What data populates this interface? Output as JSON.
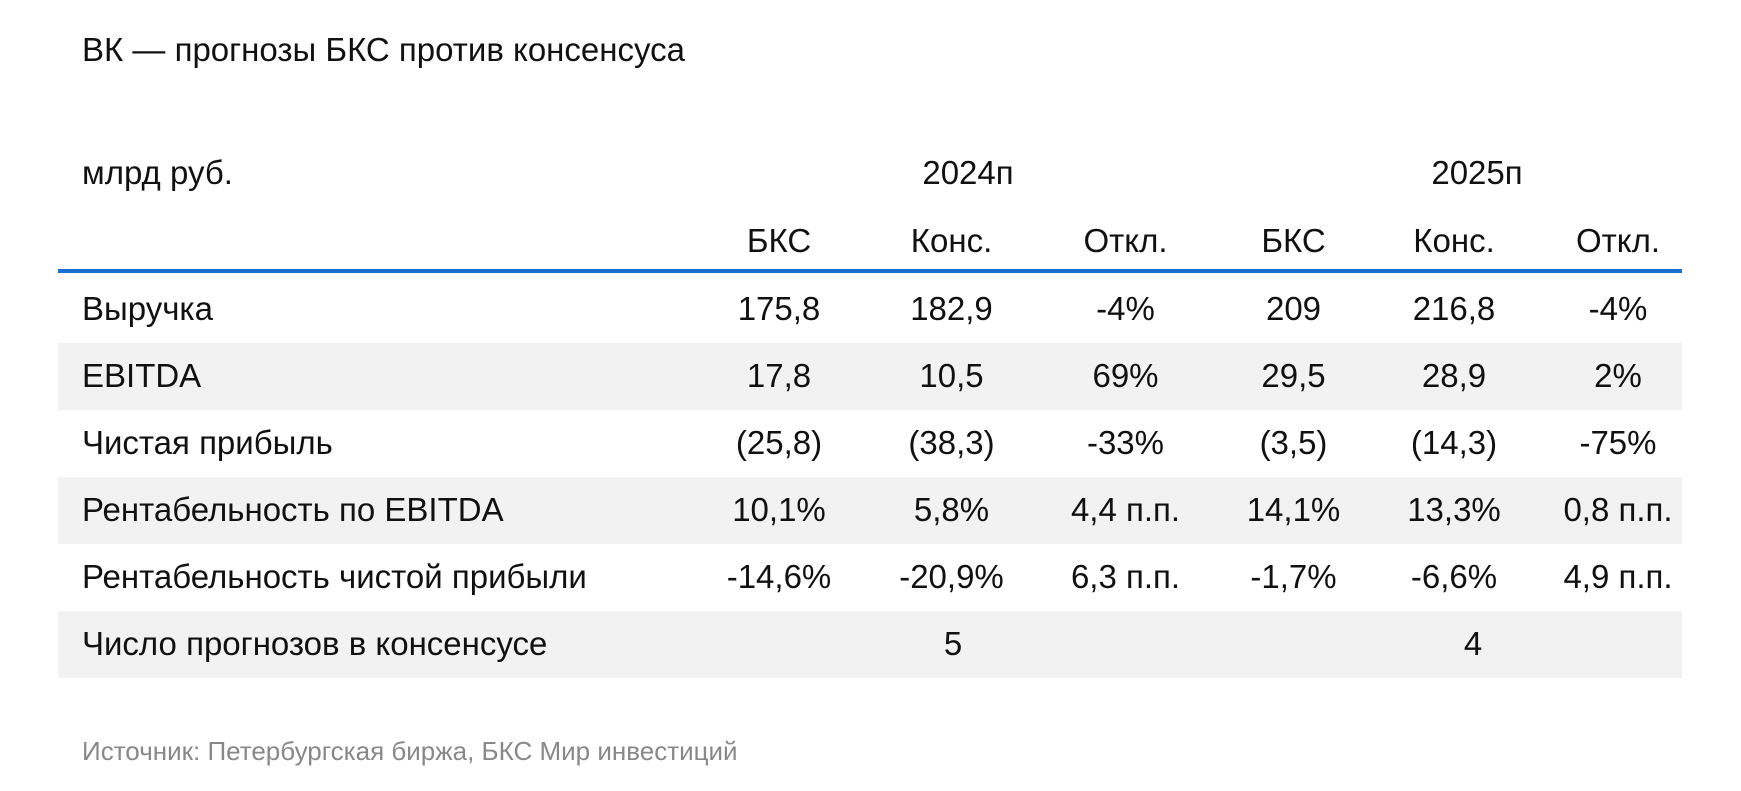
{
  "title": "ВК — прогнозы БКС против консенсуса",
  "unit_label": "млрд руб.",
  "years": [
    "2024п",
    "2025п"
  ],
  "subheaders": [
    "БКС",
    "Конс.",
    "Откл.",
    "БКС",
    "Конс.",
    "Откл."
  ],
  "rows": [
    {
      "label": "Выручка",
      "values": [
        "175,8",
        "182,9",
        "-4%",
        "209",
        "216,8",
        "-4%"
      ]
    },
    {
      "label": "EBITDA",
      "values": [
        "17,8",
        "10,5",
        "69%",
        "29,5",
        "28,9",
        "2%"
      ]
    },
    {
      "label": "Чистая прибыль",
      "values": [
        "(25,8)",
        "(38,3)",
        "-33%",
        "(3,5)",
        "(14,3)",
        "-75%"
      ]
    },
    {
      "label": "Рентабельность по EBITDA",
      "values": [
        "10,1%",
        "5,8%",
        "4,4 п.п.",
        "14,1%",
        "13,3%",
        "0,8 п.п."
      ]
    },
    {
      "label": "Рентабельность чистой прибыли",
      "values": [
        "-14,6%",
        "-20,9%",
        "6,3 п.п.",
        "-1,7%",
        "-6,6%",
        "4,9 п.п."
      ]
    }
  ],
  "consensus_count_row": {
    "label": "Число прогнозов в консенсусе",
    "values": [
      "5",
      "4"
    ]
  },
  "source": "Источник: Петербургская биржа, БКС Мир инвестиций",
  "colors": {
    "header_rule": "#1a6fd4",
    "stripe": "#f2f2f2",
    "source_text": "#888888"
  }
}
